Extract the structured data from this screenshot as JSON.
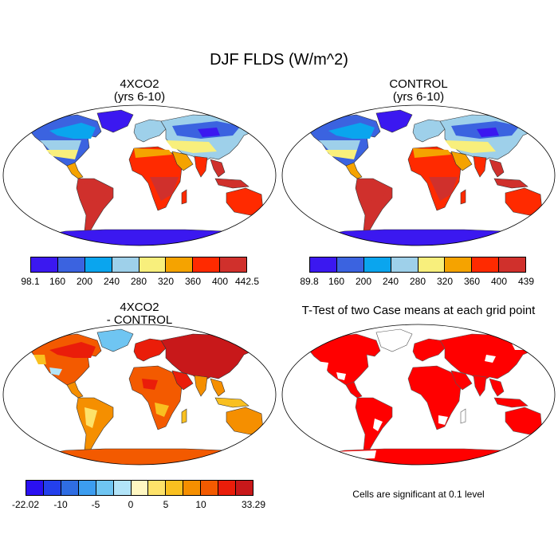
{
  "figure": {
    "title": "DJF FLDS (W/m^2)"
  },
  "panels": [
    {
      "id": "p1",
      "title_lines": [
        "4XCO2",
        "(yrs 6-10)"
      ],
      "kind": "abs"
    },
    {
      "id": "p2",
      "title_lines": [
        "CONTROL",
        "(yrs 6-10)"
      ],
      "kind": "abs"
    },
    {
      "id": "p3",
      "title_lines": [
        "4XCO2",
        "- CONTROL"
      ],
      "kind": "diff"
    },
    {
      "id": "p4",
      "title_lines": [
        "T-Test of two Case means at each grid point"
      ],
      "kind": "ttest"
    }
  ],
  "colorbars": {
    "cb1": {
      "colors": [
        "#3b18f0",
        "#3b63e0",
        "#0aa5ee",
        "#9ed0ea",
        "#f8ef7c",
        "#f5a300",
        "#ff2a00",
        "#d0302c"
      ],
      "labels": [
        "98.1",
        "160",
        "200",
        "240",
        "280",
        "320",
        "360",
        "400",
        "442.5"
      ]
    },
    "cb2": {
      "colors": [
        "#3b18f0",
        "#3b63e0",
        "#0aa5ee",
        "#9ed0ea",
        "#f8ef7c",
        "#f5a300",
        "#ff2a00",
        "#d0302c"
      ],
      "labels": [
        "89.8",
        "160",
        "200",
        "240",
        "280",
        "320",
        "360",
        "400",
        "439"
      ]
    },
    "cb3": {
      "colors": [
        "#2a10f2",
        "#2440ec",
        "#2f6de3",
        "#3c9df0",
        "#6fc5f2",
        "#b2e4f8",
        "#fff7c2",
        "#fde26a",
        "#f9c020",
        "#f58f00",
        "#f35a00",
        "#ea1d0a",
        "#c8181a"
      ],
      "labels": [
        "-22.02",
        "-10",
        "-5",
        "0",
        "5",
        "10",
        "33.29"
      ],
      "label_edges": [
        0,
        2,
        4,
        6,
        8,
        10,
        13
      ]
    }
  },
  "note": "Cells are significant at 0.1 level"
}
